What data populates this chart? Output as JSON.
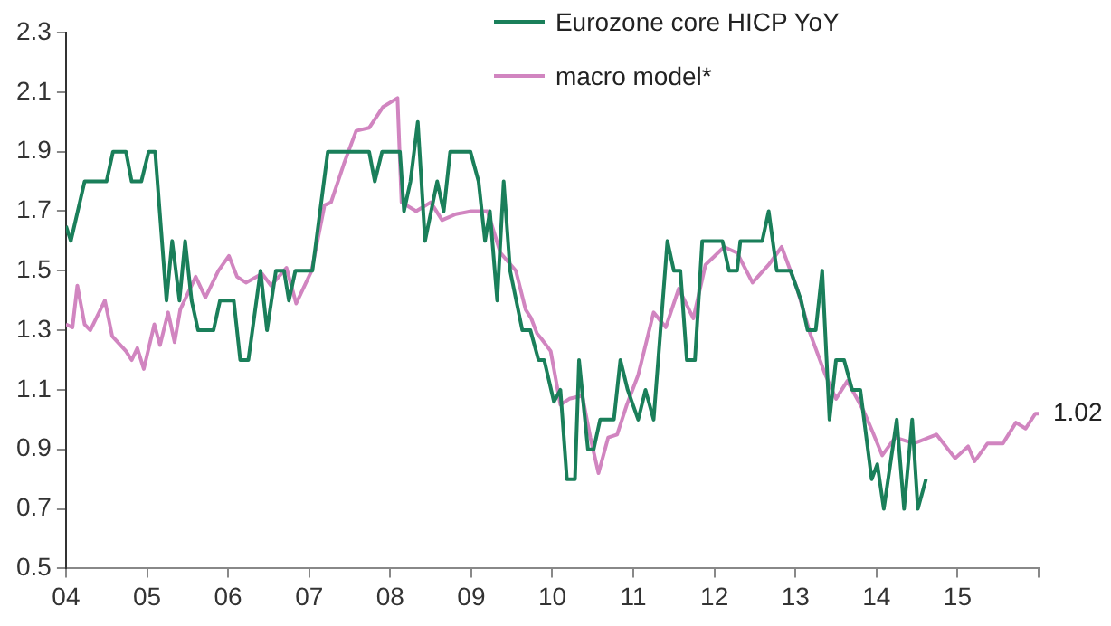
{
  "chart_data": {
    "type": "line",
    "legend": "top right",
    "grid": false,
    "marker": "none",
    "line_style": "solid",
    "xlim": [
      2004,
      2016
    ],
    "ylim": [
      0.5,
      2.3
    ],
    "xticks": [
      {
        "value": 2004,
        "label": "04"
      },
      {
        "value": 2005,
        "label": "05"
      },
      {
        "value": 2006,
        "label": "06"
      },
      {
        "value": 2007,
        "label": "07"
      },
      {
        "value": 2008,
        "label": "08"
      },
      {
        "value": 2009,
        "label": "09"
      },
      {
        "value": 2010,
        "label": "10"
      },
      {
        "value": 2011,
        "label": "11"
      },
      {
        "value": 2012,
        "label": "12"
      },
      {
        "value": 2013,
        "label": "13"
      },
      {
        "value": 2014,
        "label": "14"
      },
      {
        "value": 2015,
        "label": "15"
      },
      {
        "value": 2016,
        "label": null
      }
    ],
    "yticks": [
      0.5,
      0.7,
      0.9,
      1.1,
      1.3,
      1.5,
      1.7,
      1.9,
      2.1,
      2.3
    ],
    "annotations": [
      {
        "text": "1.02",
        "x": 2016.0,
        "y": 1.02
      }
    ],
    "series": [
      {
        "name": "Eurozone core HICP YoY",
        "color": "#1a7f5a",
        "x": [
          2004.0,
          2004.06,
          2004.23,
          2004.5,
          2004.58,
          2004.74,
          2004.81,
          2004.93,
          2005.02,
          2005.1,
          2005.24,
          2005.31,
          2005.4,
          2005.47,
          2005.55,
          2005.63,
          2005.82,
          2005.9,
          2006.07,
          2006.15,
          2006.25,
          2006.4,
          2006.48,
          2006.59,
          2006.69,
          2006.75,
          2006.83,
          2007.04,
          2007.23,
          2007.74,
          2007.81,
          2007.9,
          2008.12,
          2008.17,
          2008.25,
          2008.34,
          2008.43,
          2008.58,
          2008.66,
          2008.74,
          2008.99,
          2009.09,
          2009.17,
          2009.23,
          2009.32,
          2009.4,
          2009.48,
          2009.63,
          2009.73,
          2009.83,
          2009.9,
          2010.02,
          2010.1,
          2010.18,
          2010.28,
          2010.33,
          2010.44,
          2010.51,
          2010.59,
          2010.76,
          2010.84,
          2010.93,
          2011.06,
          2011.15,
          2011.25,
          2011.42,
          2011.5,
          2011.58,
          2011.66,
          2011.76,
          2011.85,
          2012.1,
          2012.18,
          2012.28,
          2012.32,
          2012.59,
          2012.67,
          2012.77,
          2012.94,
          2013.07,
          2013.15,
          2013.25,
          2013.33,
          2013.42,
          2013.5,
          2013.6,
          2013.7,
          2013.8,
          2013.94,
          2014.01,
          2014.09,
          2014.25,
          2014.34,
          2014.44,
          2014.51,
          2014.61
        ],
        "values": [
          1.65,
          1.6,
          1.8,
          1.8,
          1.9,
          1.9,
          1.8,
          1.8,
          1.9,
          1.9,
          1.4,
          1.6,
          1.4,
          1.6,
          1.4,
          1.3,
          1.3,
          1.4,
          1.4,
          1.2,
          1.2,
          1.5,
          1.3,
          1.5,
          1.5,
          1.4,
          1.5,
          1.5,
          1.9,
          1.9,
          1.8,
          1.9,
          1.9,
          1.7,
          1.8,
          2.0,
          1.6,
          1.8,
          1.7,
          1.9,
          1.9,
          1.8,
          1.6,
          1.7,
          1.4,
          1.8,
          1.5,
          1.3,
          1.3,
          1.2,
          1.2,
          1.06,
          1.1,
          0.8,
          0.8,
          1.2,
          0.9,
          0.9,
          1.0,
          1.0,
          1.2,
          1.1,
          1.0,
          1.1,
          1.0,
          1.6,
          1.5,
          1.5,
          1.2,
          1.2,
          1.6,
          1.6,
          1.5,
          1.5,
          1.6,
          1.6,
          1.7,
          1.5,
          1.5,
          1.4,
          1.3,
          1.3,
          1.5,
          1.0,
          1.2,
          1.2,
          1.1,
          1.1,
          0.8,
          0.85,
          0.7,
          1.0,
          0.7,
          1.0,
          0.7,
          0.8
        ]
      },
      {
        "name": "macro model*",
        "color": "#d185c0",
        "x": [
          2004.0,
          2004.08,
          2004.14,
          2004.23,
          2004.3,
          2004.48,
          2004.57,
          2004.74,
          2004.81,
          2004.88,
          2004.96,
          2005.09,
          2005.16,
          2005.26,
          2005.34,
          2005.41,
          2005.6,
          2005.72,
          2005.88,
          2006.01,
          2006.11,
          2006.22,
          2006.42,
          2006.53,
          2006.72,
          2006.84,
          2007.03,
          2007.19,
          2007.27,
          2007.43,
          2007.58,
          2007.74,
          2007.91,
          2008.09,
          2008.14,
          2008.32,
          2008.5,
          2008.64,
          2008.81,
          2009.0,
          2009.2,
          2009.36,
          2009.55,
          2009.67,
          2009.74,
          2009.81,
          2009.87,
          2009.98,
          2010.1,
          2010.21,
          2010.37,
          2010.47,
          2010.57,
          2010.69,
          2010.8,
          2010.92,
          2011.06,
          2011.25,
          2011.4,
          2011.56,
          2011.74,
          2011.89,
          2012.12,
          2012.28,
          2012.47,
          2012.67,
          2012.83,
          2013.02,
          2013.18,
          2013.37,
          2013.5,
          2013.64,
          2013.84,
          2013.95,
          2014.07,
          2014.23,
          2014.46,
          2014.74,
          2014.97,
          2015.13,
          2015.21,
          2015.37,
          2015.56,
          2015.72,
          2015.84,
          2015.96,
          2016.0
        ],
        "values": [
          1.32,
          1.31,
          1.45,
          1.32,
          1.3,
          1.4,
          1.28,
          1.23,
          1.2,
          1.24,
          1.17,
          1.32,
          1.25,
          1.36,
          1.26,
          1.37,
          1.48,
          1.41,
          1.5,
          1.55,
          1.48,
          1.46,
          1.49,
          1.45,
          1.51,
          1.39,
          1.5,
          1.72,
          1.73,
          1.86,
          1.97,
          1.98,
          2.05,
          2.08,
          1.73,
          1.7,
          1.73,
          1.67,
          1.69,
          1.7,
          1.7,
          1.56,
          1.5,
          1.37,
          1.34,
          1.29,
          1.27,
          1.23,
          1.05,
          1.07,
          1.08,
          0.94,
          0.82,
          0.94,
          0.95,
          1.05,
          1.15,
          1.36,
          1.31,
          1.44,
          1.34,
          1.52,
          1.58,
          1.56,
          1.46,
          1.52,
          1.58,
          1.44,
          1.29,
          1.15,
          1.07,
          1.13,
          1.03,
          0.96,
          0.88,
          0.94,
          0.92,
          0.95,
          0.87,
          0.91,
          0.86,
          0.92,
          0.92,
          0.99,
          0.97,
          1.02,
          1.02
        ]
      }
    ]
  }
}
